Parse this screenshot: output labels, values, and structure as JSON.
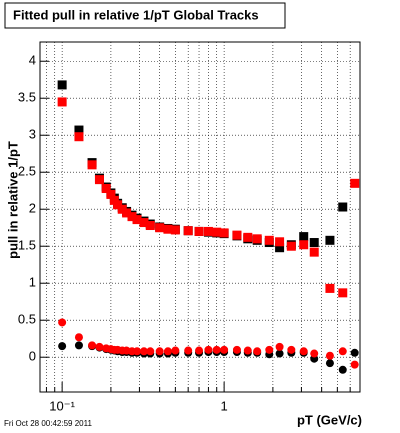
{
  "chart_data": {
    "type": "scatter",
    "title": "Fitted pull in relative 1/pT  Global Tracks",
    "x_label": "pT (GeV/c)",
    "y_label": "pull in relative 1/pT",
    "footer": "Fri Oct 28 00:42:59 2011",
    "x_log": true,
    "grid": true,
    "xlim": [
      0.073,
      6.9
    ],
    "ylim": [
      -0.47,
      4.26
    ],
    "xticks": [
      {
        "value": 0.1,
        "label": "10⁻¹"
      },
      1
    ],
    "yticks": [
      0,
      0.5,
      1,
      1.5,
      2,
      2.5,
      3,
      3.5,
      4
    ],
    "x": [
      0.1,
      0.127,
      0.153,
      0.17,
      0.187,
      0.2,
      0.21,
      0.22,
      0.235,
      0.25,
      0.27,
      0.29,
      0.32,
      0.35,
      0.4,
      0.45,
      0.5,
      0.6,
      0.7,
      0.8,
      0.9,
      1.0,
      1.2,
      1.4,
      1.6,
      1.9,
      2.2,
      2.6,
      3.1,
      3.6,
      4.5,
      5.4,
      6.4
    ],
    "series": [
      {
        "marker": "square",
        "color": "#000000",
        "values": [
          3.68,
          3.07,
          2.63,
          2.42,
          2.3,
          2.22,
          2.15,
          2.08,
          2.02,
          1.97,
          1.92,
          1.88,
          1.84,
          1.8,
          1.76,
          1.74,
          1.73,
          1.71,
          1.7,
          1.69,
          1.68,
          1.67,
          1.64,
          1.6,
          1.58,
          1.55,
          1.48,
          1.52,
          1.63,
          1.55,
          1.58,
          2.03,
          null
        ]
      },
      {
        "marker": "square",
        "color": "#ff0000",
        "values": [
          3.45,
          2.98,
          2.6,
          2.4,
          2.28,
          2.2,
          2.12,
          2.06,
          2.0,
          1.95,
          1.9,
          1.86,
          1.82,
          1.78,
          1.75,
          1.73,
          1.72,
          1.71,
          1.7,
          1.7,
          1.69,
          1.68,
          1.65,
          1.62,
          1.6,
          1.58,
          1.56,
          1.5,
          1.52,
          1.42,
          0.93,
          0.87,
          2.35
        ]
      },
      {
        "marker": "circle",
        "color": "#000000",
        "values": [
          0.15,
          0.16,
          0.15,
          0.13,
          0.11,
          0.1,
          0.09,
          0.08,
          0.07,
          0.07,
          0.06,
          0.06,
          0.05,
          0.05,
          0.05,
          0.05,
          0.06,
          0.06,
          0.06,
          0.07,
          0.07,
          0.07,
          0.07,
          0.06,
          0.06,
          0.04,
          0.05,
          0.06,
          0.06,
          -0.02,
          -0.08,
          -0.17,
          0.06
        ]
      },
      {
        "marker": "circle",
        "color": "#ff0000",
        "values": [
          0.47,
          0.27,
          0.16,
          0.14,
          0.12,
          0.11,
          0.1,
          0.1,
          0.09,
          0.09,
          0.08,
          0.08,
          0.08,
          0.08,
          0.08,
          0.08,
          0.09,
          0.09,
          0.09,
          0.1,
          0.1,
          0.1,
          0.1,
          0.09,
          0.08,
          0.1,
          0.14,
          0.1,
          0.08,
          0.05,
          0.02,
          0.08,
          -0.1
        ]
      }
    ]
  }
}
